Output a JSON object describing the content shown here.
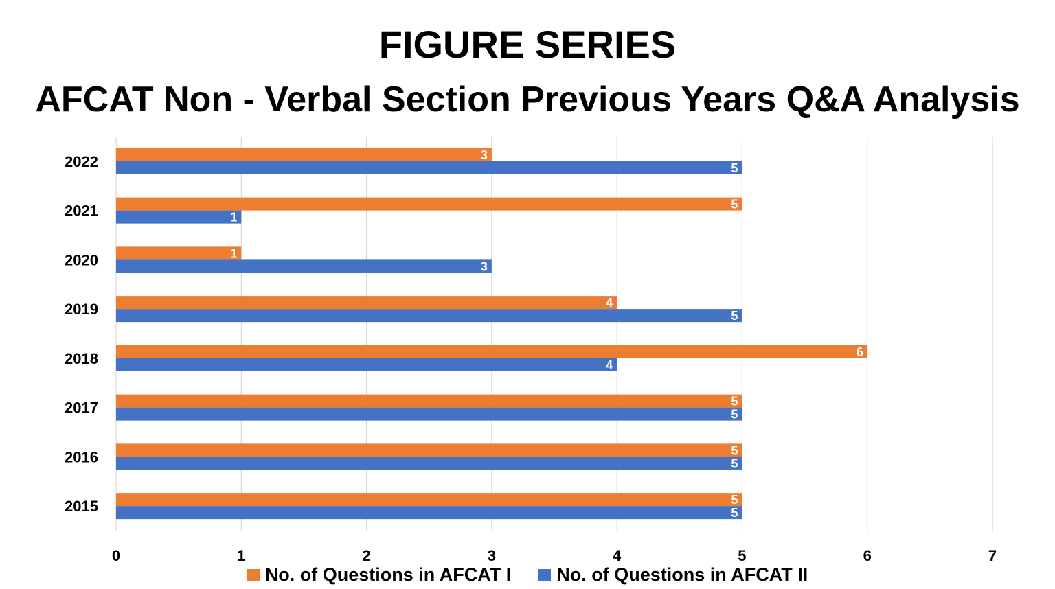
{
  "chart_data": {
    "type": "bar",
    "orientation": "horizontal",
    "title": "FIGURE SERIES",
    "subtitle": "AFCAT Non - Verbal Section Previous Years Q&A Analysis",
    "categories": [
      "2022",
      "2021",
      "2020",
      "2019",
      "2018",
      "2017",
      "2016",
      "2015"
    ],
    "series": [
      {
        "name": "No. of Questions in AFCAT I",
        "color": "#ED7D31",
        "values": [
          3,
          5,
          1,
          4,
          6,
          5,
          5,
          5
        ]
      },
      {
        "name": "No. of Questions in AFCAT II",
        "color": "#4472C4",
        "values": [
          5,
          1,
          3,
          5,
          4,
          5,
          5,
          5
        ]
      }
    ],
    "xlim": [
      0,
      7
    ],
    "xticks": [
      "0",
      "1",
      "2",
      "3",
      "4",
      "5",
      "6",
      "7"
    ],
    "grid": true,
    "legend_position": "bottom"
  }
}
